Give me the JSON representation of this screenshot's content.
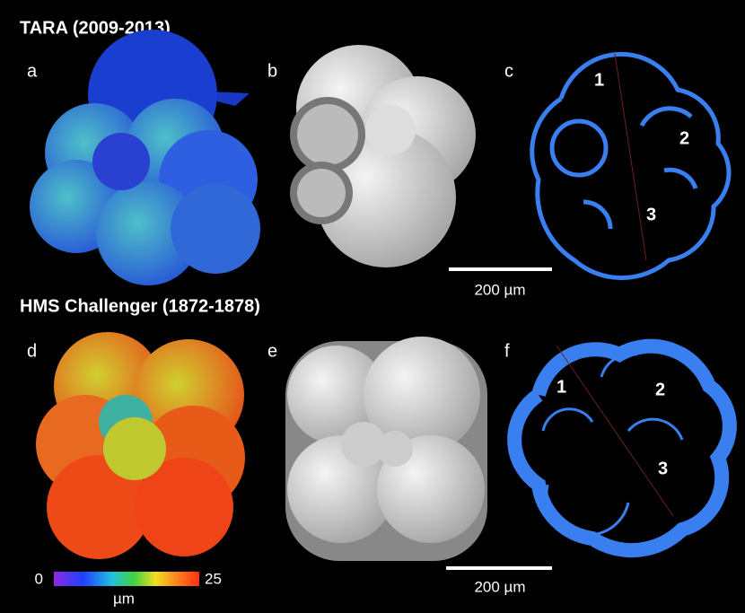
{
  "sections": [
    {
      "title": "TARA (2009-2013)",
      "panels": [
        {
          "label": "a"
        },
        {
          "label": "b"
        },
        {
          "label": "c",
          "chambers": [
            "1",
            "2",
            "3"
          ]
        }
      ],
      "scale_bar": "200 µm"
    },
    {
      "title": "HMS Challenger (1872-1878)",
      "panels": [
        {
          "label": "d"
        },
        {
          "label": "e"
        },
        {
          "label": "f",
          "chambers": [
            "1",
            "2",
            "3"
          ]
        }
      ],
      "scale_bar": "200 µm"
    }
  ],
  "colorbar": {
    "min": "0",
    "max": "25",
    "unit": "µm"
  }
}
